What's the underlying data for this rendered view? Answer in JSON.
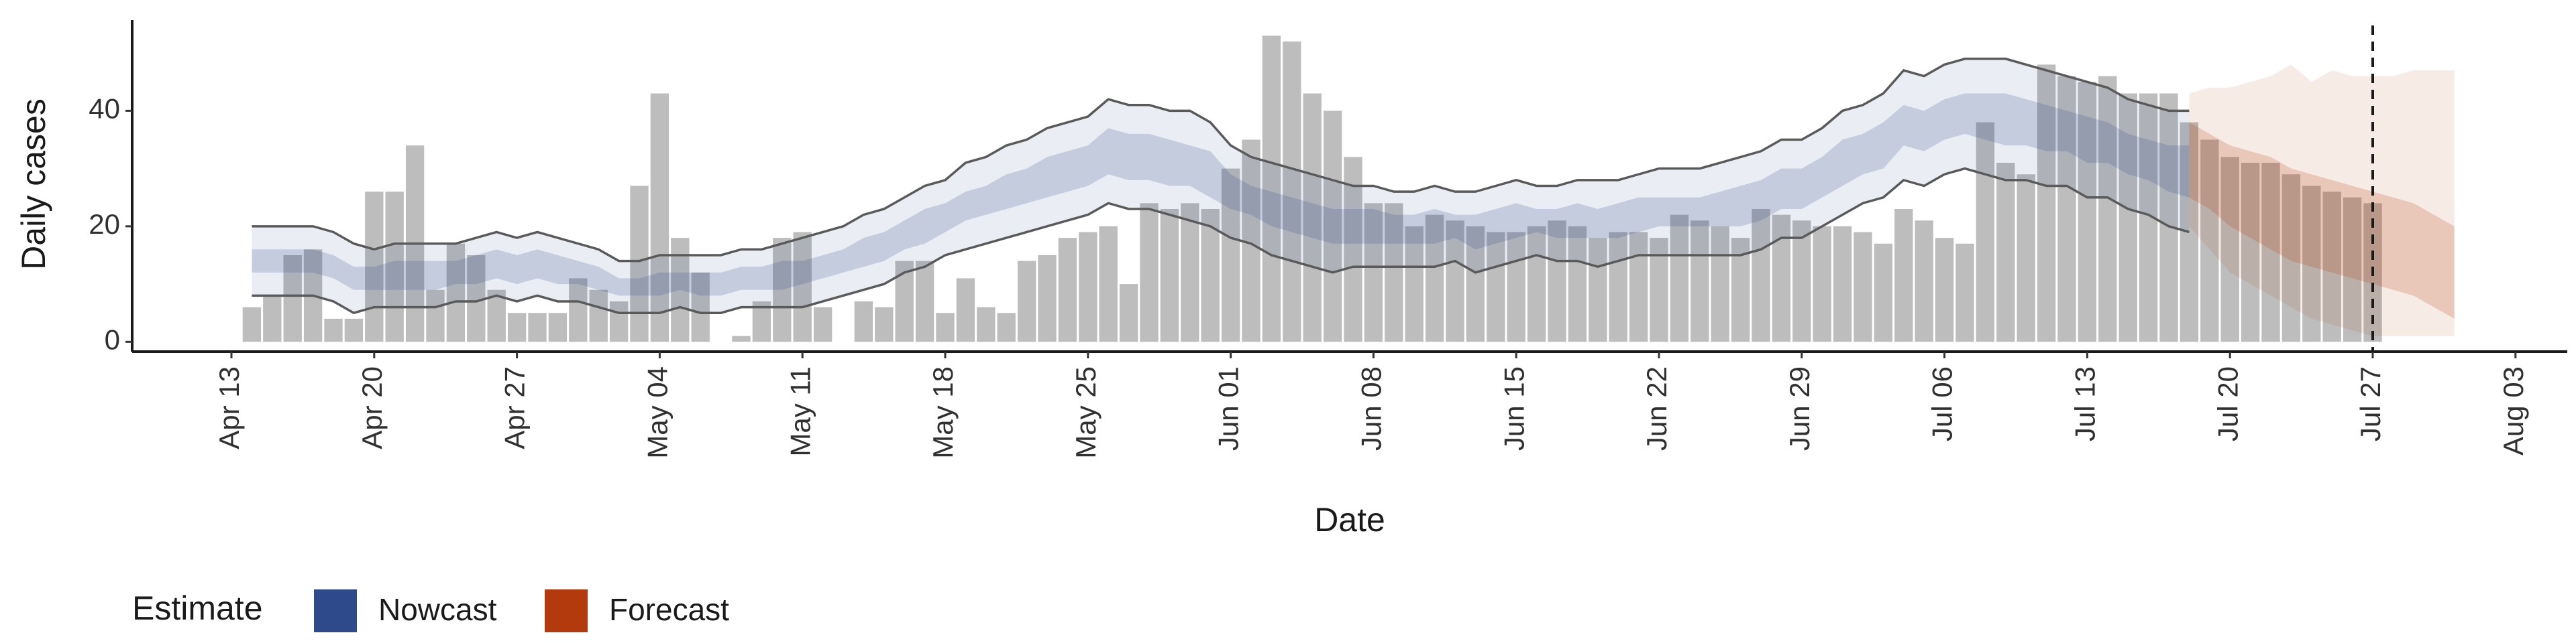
{
  "chart_data": {
    "type": "bar",
    "xlabel": "Date",
    "ylabel": "Daily cases",
    "ylim": [
      -1.7,
      55.7
    ],
    "yticks": [
      0,
      20,
      40
    ],
    "legend_title": "Estimate",
    "legend_position": "bottom-left",
    "vline": "Jul 27",
    "bar_color": "#bdbdbd",
    "categories": [
      "Apr 13",
      null,
      null,
      null,
      null,
      null,
      null,
      "Apr 20",
      null,
      null,
      null,
      null,
      null,
      null,
      "Apr 27",
      null,
      null,
      null,
      null,
      null,
      null,
      "May 04",
      null,
      null,
      null,
      null,
      null,
      null,
      "May 11",
      null,
      null,
      null,
      null,
      null,
      null,
      "May 18",
      null,
      null,
      null,
      null,
      null,
      null,
      "May 25",
      null,
      null,
      null,
      null,
      null,
      null,
      "Jun 01",
      null,
      null,
      null,
      null,
      null,
      null,
      "Jun 08",
      null,
      null,
      null,
      null,
      null,
      null,
      "Jun 15",
      null,
      null,
      null,
      null,
      null,
      null,
      "Jun 22",
      null,
      null,
      null,
      null,
      null,
      null,
      "Jun 29",
      null,
      null,
      null,
      null,
      null,
      null,
      "Jul 06",
      null,
      null,
      null,
      null,
      null,
      null,
      "Jul 13",
      null,
      null,
      null,
      null,
      null,
      null,
      "Jul 20",
      null,
      null,
      null,
      null,
      null,
      null,
      "Jul 27",
      null,
      null,
      null,
      null,
      null,
      null,
      "Aug 03"
    ],
    "values": [
      null,
      6,
      8,
      15,
      16,
      4,
      4,
      26,
      26,
      34,
      9,
      17,
      15,
      9,
      5,
      5,
      5,
      11,
      9,
      7,
      27,
      43,
      18,
      12,
      0,
      1,
      7,
      18,
      19,
      6,
      0,
      7,
      6,
      14,
      14,
      5,
      11,
      6,
      5,
      14,
      15,
      18,
      19,
      20,
      10,
      24,
      23,
      24,
      23,
      30,
      35,
      53,
      52,
      43,
      40,
      32,
      24,
      24,
      20,
      22,
      21,
      20,
      19,
      19,
      20,
      21,
      20,
      18,
      19,
      19,
      18,
      22,
      21,
      20,
      18,
      23,
      22,
      21,
      20,
      20,
      19,
      17,
      23,
      21,
      18,
      17,
      38,
      31,
      29,
      48,
      46,
      45,
      46,
      43,
      43,
      43,
      38,
      35,
      32,
      31,
      31,
      29,
      27,
      26,
      25,
      24,
      null,
      null,
      null,
      null,
      null,
      null,
      null
    ],
    "series": [
      {
        "name": "Nowcast",
        "color": "#2f4a8a",
        "outline": "#5a5a5a",
        "upper90": [
          null,
          20,
          20,
          20,
          20,
          19,
          17,
          16,
          17,
          17,
          17,
          17,
          18,
          19,
          18,
          19,
          18,
          17,
          16,
          14,
          14,
          15,
          15,
          15,
          15,
          16,
          16,
          17,
          18,
          19,
          20,
          22,
          23,
          25,
          27,
          28,
          31,
          32,
          34,
          35,
          37,
          38,
          39,
          42,
          41,
          41,
          40,
          40,
          38,
          34,
          32,
          31,
          30,
          29,
          28,
          27,
          27,
          26,
          26,
          27,
          26,
          26,
          27,
          28,
          27,
          27,
          28,
          28,
          28,
          29,
          30,
          30,
          30,
          31,
          32,
          33,
          35,
          35,
          37,
          40,
          41,
          43,
          47,
          46,
          48,
          49,
          49,
          49,
          48,
          47,
          46,
          45,
          44,
          42,
          41,
          40,
          40,
          null,
          null,
          null,
          null,
          null,
          null,
          null,
          null,
          null,
          null,
          null,
          null,
          null,
          null,
          null,
          null
        ],
        "lower90": [
          null,
          8,
          8,
          8,
          8,
          7,
          5,
          6,
          6,
          6,
          6,
          7,
          7,
          8,
          7,
          8,
          7,
          7,
          6,
          5,
          5,
          5,
          6,
          5,
          5,
          6,
          6,
          6,
          6,
          7,
          8,
          9,
          10,
          12,
          13,
          15,
          16,
          17,
          18,
          19,
          20,
          21,
          22,
          24,
          23,
          23,
          22,
          21,
          20,
          18,
          17,
          15,
          14,
          13,
          12,
          13,
          13,
          13,
          13,
          13,
          14,
          12,
          13,
          14,
          15,
          14,
          14,
          13,
          14,
          15,
          15,
          15,
          15,
          15,
          15,
          16,
          18,
          18,
          20,
          22,
          24,
          25,
          28,
          27,
          29,
          30,
          29,
          28,
          28,
          27,
          27,
          25,
          25,
          23,
          22,
          20,
          19,
          null,
          null,
          null,
          null,
          null,
          null,
          null,
          null,
          null,
          null,
          null,
          null,
          null,
          null,
          null,
          null
        ],
        "upper50": [
          null,
          16,
          16,
          16,
          16,
          15,
          13,
          13,
          14,
          14,
          14,
          14,
          15,
          16,
          15,
          16,
          15,
          14,
          13,
          11,
          11,
          12,
          12,
          12,
          12,
          13,
          13,
          14,
          14,
          15,
          16,
          18,
          19,
          21,
          23,
          24,
          26,
          27,
          29,
          30,
          32,
          33,
          34,
          37,
          36,
          36,
          35,
          34,
          33,
          29,
          27,
          26,
          25,
          24,
          23,
          23,
          23,
          22,
          22,
          23,
          22,
          22,
          23,
          24,
          23,
          23,
          24,
          23,
          24,
          25,
          25,
          25,
          25,
          26,
          27,
          28,
          30,
          30,
          32,
          35,
          36,
          38,
          41,
          40,
          42,
          43,
          43,
          43,
          42,
          41,
          40,
          39,
          38,
          36,
          35,
          34,
          34,
          null,
          null,
          null,
          null,
          null,
          null,
          null,
          null,
          null,
          null,
          null,
          null,
          null,
          null,
          null,
          null
        ],
        "lower50": [
          null,
          12,
          12,
          12,
          12,
          11,
          9,
          9,
          9,
          9,
          9,
          10,
          10,
          11,
          10,
          11,
          10,
          10,
          9,
          8,
          8,
          8,
          9,
          8,
          8,
          9,
          9,
          9,
          10,
          11,
          12,
          13,
          14,
          16,
          17,
          19,
          21,
          22,
          23,
          24,
          25,
          26,
          27,
          29,
          28,
          28,
          27,
          27,
          25,
          23,
          22,
          20,
          19,
          18,
          17,
          17,
          17,
          17,
          17,
          17,
          18,
          16,
          17,
          18,
          19,
          18,
          18,
          18,
          18,
          19,
          20,
          20,
          20,
          20,
          20,
          21,
          23,
          23,
          25,
          27,
          29,
          30,
          34,
          33,
          35,
          36,
          35,
          34,
          34,
          33,
          33,
          31,
          31,
          29,
          28,
          26,
          25,
          null,
          null,
          null,
          null,
          null,
          null,
          null,
          null,
          null,
          null,
          null,
          null,
          null,
          null,
          null,
          null
        ]
      },
      {
        "name": "Forecast",
        "color": "#b23a0c",
        "upper90": [
          null,
          null,
          null,
          null,
          null,
          null,
          null,
          null,
          null,
          null,
          null,
          null,
          null,
          null,
          null,
          null,
          null,
          null,
          null,
          null,
          null,
          null,
          null,
          null,
          null,
          null,
          null,
          null,
          null,
          null,
          null,
          null,
          null,
          null,
          null,
          null,
          null,
          null,
          null,
          null,
          null,
          null,
          null,
          null,
          null,
          null,
          null,
          null,
          null,
          null,
          null,
          null,
          null,
          null,
          null,
          null,
          null,
          null,
          null,
          null,
          null,
          null,
          null,
          null,
          null,
          null,
          null,
          null,
          null,
          null,
          null,
          null,
          null,
          null,
          null,
          null,
          null,
          null,
          null,
          null,
          null,
          null,
          null,
          null,
          null,
          null,
          null,
          null,
          null,
          null,
          null,
          null,
          null,
          null,
          null,
          null,
          43,
          44,
          44,
          45,
          46,
          48,
          45,
          47,
          46,
          46,
          46,
          47,
          47,
          47,
          null,
          null,
          null
        ],
        "lower90": [
          null,
          null,
          null,
          null,
          null,
          null,
          null,
          null,
          null,
          null,
          null,
          null,
          null,
          null,
          null,
          null,
          null,
          null,
          null,
          null,
          null,
          null,
          null,
          null,
          null,
          null,
          null,
          null,
          null,
          null,
          null,
          null,
          null,
          null,
          null,
          null,
          null,
          null,
          null,
          null,
          null,
          null,
          null,
          null,
          null,
          null,
          null,
          null,
          null,
          null,
          null,
          null,
          null,
          null,
          null,
          null,
          null,
          null,
          null,
          null,
          null,
          null,
          null,
          null,
          null,
          null,
          null,
          null,
          null,
          null,
          null,
          null,
          null,
          null,
          null,
          null,
          null,
          null,
          null,
          null,
          null,
          null,
          null,
          null,
          null,
          null,
          null,
          null,
          null,
          null,
          null,
          null,
          null,
          null,
          null,
          null,
          20,
          16,
          12,
          10,
          8,
          6,
          4,
          3,
          2,
          1,
          1,
          1,
          1,
          1,
          null,
          null,
          null
        ],
        "upper50": [
          null,
          null,
          null,
          null,
          null,
          null,
          null,
          null,
          null,
          null,
          null,
          null,
          null,
          null,
          null,
          null,
          null,
          null,
          null,
          null,
          null,
          null,
          null,
          null,
          null,
          null,
          null,
          null,
          null,
          null,
          null,
          null,
          null,
          null,
          null,
          null,
          null,
          null,
          null,
          null,
          null,
          null,
          null,
          null,
          null,
          null,
          null,
          null,
          null,
          null,
          null,
          null,
          null,
          null,
          null,
          null,
          null,
          null,
          null,
          null,
          null,
          null,
          null,
          null,
          null,
          null,
          null,
          null,
          null,
          null,
          null,
          null,
          null,
          null,
          null,
          null,
          null,
          null,
          null,
          null,
          null,
          null,
          null,
          null,
          null,
          null,
          null,
          null,
          null,
          null,
          null,
          null,
          null,
          null,
          null,
          null,
          38,
          36,
          34,
          33,
          32,
          30,
          29,
          28,
          27,
          26,
          25,
          24,
          22,
          20,
          null,
          null,
          null
        ],
        "lower50": [
          null,
          null,
          null,
          null,
          null,
          null,
          null,
          null,
          null,
          null,
          null,
          null,
          null,
          null,
          null,
          null,
          null,
          null,
          null,
          null,
          null,
          null,
          null,
          null,
          null,
          null,
          null,
          null,
          null,
          null,
          null,
          null,
          null,
          null,
          null,
          null,
          null,
          null,
          null,
          null,
          null,
          null,
          null,
          null,
          null,
          null,
          null,
          null,
          null,
          null,
          null,
          null,
          null,
          null,
          null,
          null,
          null,
          null,
          null,
          null,
          null,
          null,
          null,
          null,
          null,
          null,
          null,
          null,
          null,
          null,
          null,
          null,
          null,
          null,
          null,
          null,
          null,
          null,
          null,
          null,
          null,
          null,
          null,
          null,
          null,
          null,
          null,
          null,
          null,
          null,
          null,
          null,
          null,
          null,
          null,
          null,
          25,
          23,
          20,
          18,
          16,
          14,
          13,
          12,
          11,
          10,
          9,
          8,
          6,
          4,
          null,
          null,
          null
        ]
      }
    ]
  }
}
